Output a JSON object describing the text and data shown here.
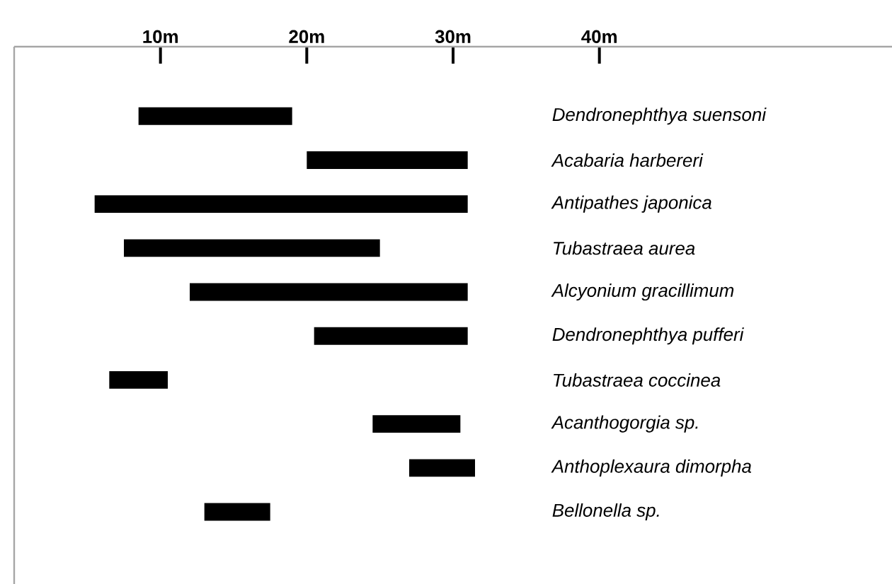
{
  "chart_data": {
    "type": "bar",
    "orientation": "horizontal",
    "categories": [
      "Dendronephthya suensoni",
      "Acabaria harbereri",
      "Antipathes japonica",
      "Tubastraea aurea",
      "Alcyonium gracillimum",
      "Dendronephthya pufferi",
      "Tubastraea coccinea",
      "Acanthogorgia sp.",
      "Anthoplexaura dimorpha",
      "Bellonella sp."
    ],
    "base": [
      8.5,
      20,
      5.5,
      7.5,
      12,
      20.5,
      6.5,
      24.5,
      27,
      13
    ],
    "values": [
      10.5,
      11,
      25.5,
      17.5,
      19,
      10.5,
      4,
      6,
      4.5,
      4.5
    ],
    "color": "#000000",
    "xlim": [
      0,
      60
    ],
    "xticks": [
      {
        "value": 10,
        "label": "10m"
      },
      {
        "value": 20,
        "label": "20m"
      },
      {
        "value": 30,
        "label": "30m"
      },
      {
        "value": 40,
        "label": "40m"
      }
    ],
    "grid": false
  }
}
